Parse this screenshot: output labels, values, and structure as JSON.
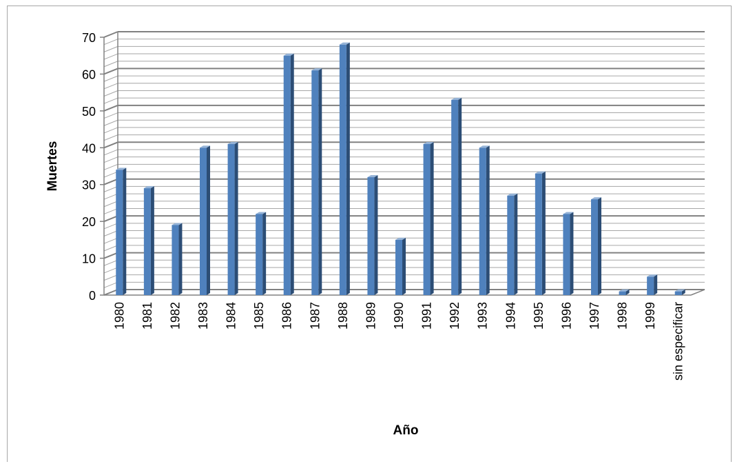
{
  "chart_data": {
    "type": "bar",
    "title": "",
    "xlabel": "Año",
    "ylabel": "Muertes",
    "ylim": [
      0,
      70
    ],
    "y_major_step": 10,
    "y_minor_step": 2,
    "grid": true,
    "legend": "none",
    "categories": [
      "1980",
      "1981",
      "1982",
      "1983",
      "1984",
      "1985",
      "1986",
      "1987",
      "1988",
      "1989",
      "1990",
      "1991",
      "1992",
      "1993",
      "1994",
      "1995",
      "1996",
      "1997",
      "1998",
      "1999",
      "sin especificar"
    ],
    "values": [
      34,
      29,
      19,
      40,
      41,
      22,
      65,
      61,
      68,
      32,
      15,
      41,
      53,
      40,
      27,
      33,
      22,
      26,
      1,
      5,
      1
    ],
    "colors": {
      "bar": "#4f81bd",
      "bar_side": "#2c4d75",
      "bar_top": "#95b3d7",
      "gridline": "#a6a6a6",
      "major_gridline": "#808080"
    }
  }
}
